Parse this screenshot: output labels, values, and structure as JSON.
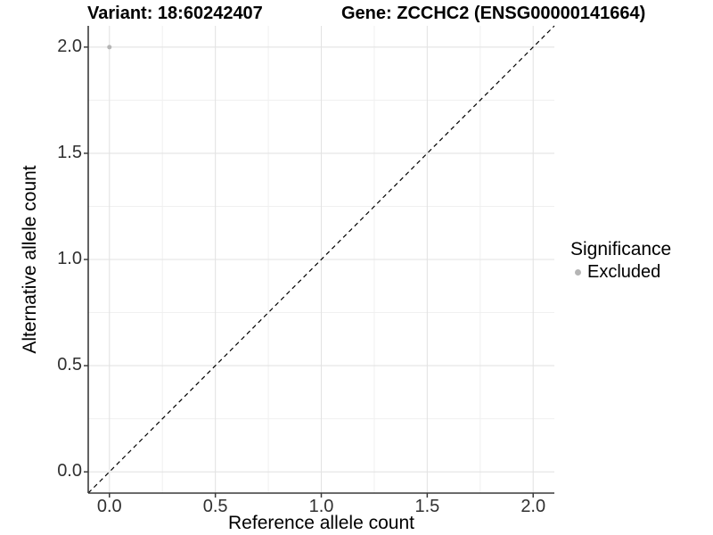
{
  "chart_data": {
    "type": "scatter",
    "title_left": "Variant: 18:60242407",
    "title_right": "Gene: ZCCHC2 (ENSG00000141664)",
    "xlabel": "Reference allele count",
    "ylabel": "Alternative allele count",
    "xlim": [
      -0.1,
      2.1
    ],
    "ylim": [
      -0.1,
      2.1
    ],
    "x_ticks": [
      "0.0",
      "0.5",
      "1.0",
      "1.5",
      "2.0"
    ],
    "y_ticks": [
      "0.0",
      "0.5",
      "1.0",
      "1.5",
      "2.0"
    ],
    "x_minor_ticks": [
      0.25,
      0.75,
      1.25,
      1.75
    ],
    "y_minor_ticks": [
      0.25,
      0.75,
      1.25,
      1.75
    ],
    "grid": "on",
    "legend_position": "right",
    "reference_line": {
      "kind": "identity y=x",
      "linetype": "dashed",
      "color": "#000000"
    },
    "series": [
      {
        "name": "Excluded",
        "color": "#b5b5b5",
        "point_radius": 2.5,
        "points": [
          {
            "x": 0,
            "y": 2
          }
        ]
      }
    ],
    "legend": {
      "title": "Significance",
      "entries": [
        {
          "label": "Excluded",
          "color": "#b5b5b5"
        }
      ]
    },
    "colors": {
      "panel_bg": "#ffffff",
      "grid_major": "#e3e3e3",
      "grid_minor": "#f0f0f0",
      "axis_line": "#3a3a3a",
      "tick_label": "#303030"
    }
  }
}
